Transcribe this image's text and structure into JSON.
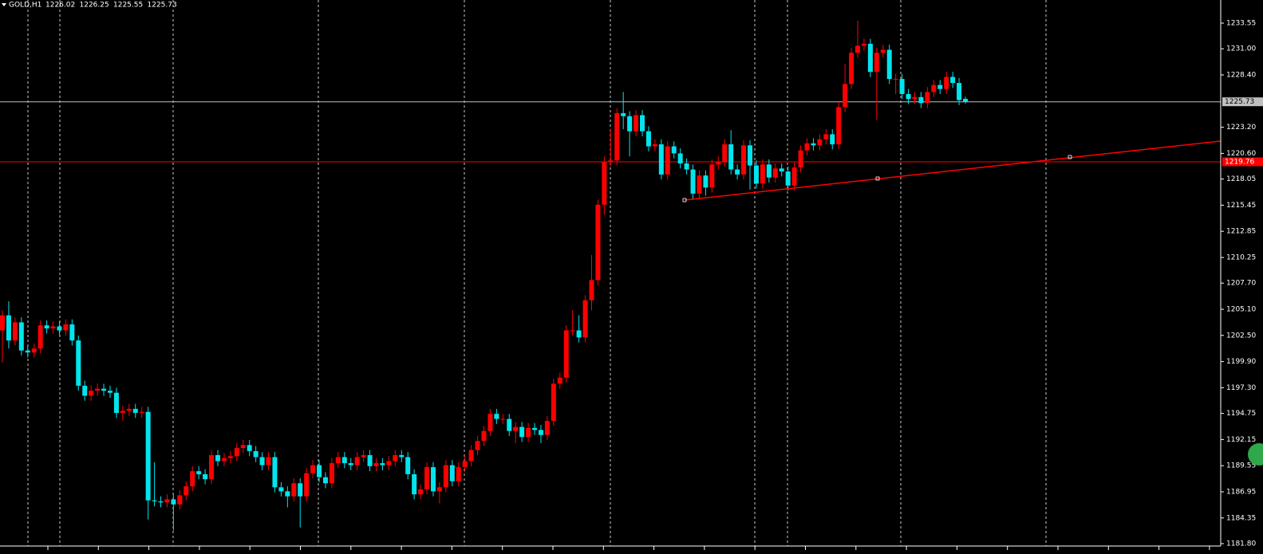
{
  "chart_data": {
    "type": "candlestick",
    "title": "GOLD,H1",
    "up_color": "#ff0000",
    "down_color": "#00e5ee",
    "ylim": [
      1181.56,
      1235.85
    ],
    "yticks": [
      1233.55,
      {
        "value": 1231,
        "label": "1231.00"
      },
      {
        "value": 1228.4,
        "label": "1228.40"
      },
      {
        "value": 1223.2,
        "label": "1223.20"
      },
      {
        "value": 1220.6,
        "label": "1220.60"
      },
      1218.05,
      1215.45,
      1212.85,
      1210.25,
      {
        "value": 1207.7,
        "label": "1207.70"
      },
      {
        "value": 1205.1,
        "label": "1205.10"
      },
      {
        "value": 1202.5,
        "label": "1202.50"
      },
      {
        "value": 1199.9,
        "label": "1199.90"
      },
      {
        "value": 1197.3,
        "label": "1197.30"
      },
      1194.75,
      1192.15,
      1189.55,
      1186.95,
      1184.35,
      {
        "value": 1181.8,
        "label": "1181.80"
      }
    ],
    "price_lines": [
      {
        "value": 1225.73,
        "color": "#c0c0c0"
      },
      {
        "value": 1219.76,
        "color": "#ff0000"
      }
    ],
    "open": [
      1203.0,
      1204.5,
      1202.0,
      1203.8,
      1201.0,
      1200.8,
      1201.2,
      1203.5,
      1203.2,
      1203.4,
      1203.0,
      1203.6,
      1202.0,
      1197.5,
      1196.5,
      1197.0,
      1197.2,
      1197.0,
      1196.8,
      1194.8,
      1195.0,
      1195.2,
      1194.8,
      1194.9,
      1186.1,
      1186.0,
      1185.9,
      1186.2,
      1185.7,
      1186.6,
      1187.5,
      1189.0,
      1188.7,
      1188.2,
      1190.6,
      1190.0,
      1190.3,
      1190.5,
      1191.3,
      1191.6,
      1191.0,
      1190.4,
      1189.6,
      1190.4,
      1187.4,
      1187.0,
      1186.5,
      1187.8,
      1186.5,
      1188.8,
      1189.6,
      1188.4,
      1187.8,
      1189.8,
      1190.4,
      1189.8,
      1189.6,
      1190.4,
      1190.6,
      1189.5,
      1189.8,
      1189.6,
      1190.0,
      1190.6,
      1190.4,
      1188.7,
      1186.7,
      1187.2,
      1189.4,
      1187.0,
      1187.4,
      1189.6,
      1188.0,
      1189.4,
      1190.0,
      1191.1,
      1192.0,
      1193.0,
      1194.7,
      1194.2,
      1194.2,
      1193.0,
      1193.4,
      1192.4,
      1193.3,
      1193.1,
      1192.6,
      1194.0,
      1197.7,
      1198.3,
      1203.0,
      1203.0,
      1202.3,
      1206.0,
      1208.0,
      1215.5,
      1219.8,
      1219.9,
      1224.6,
      1224.3,
      1222.8,
      1224.4,
      1222.8,
      1221.3,
      1221.5,
      1218.5,
      1221.3,
      1220.6,
      1219.6,
      1219.0,
      1216.6,
      1218.4,
      1217.2,
      1219.5,
      1219.8,
      1221.5,
      1219.0,
      1218.5,
      1221.4,
      1219.4,
      1217.6,
      1219.5,
      1218.2,
      1219.1,
      1218.8,
      1217.4,
      1219.2,
      1220.9,
      1221.6,
      1221.4,
      1222.0,
      1222.5,
      1221.5,
      1225.2,
      1227.5,
      1230.6,
      1231.3,
      1231.5,
      1228.7,
      1230.6,
      1230.9,
      1228.0,
      1228.0,
      1226.5,
      1226.0,
      1226.2,
      1225.6,
      1226.7,
      1227.4,
      1227.0,
      1228.2,
      1227.6,
      1226.02
    ],
    "high": [
      1205.0,
      1205.9,
      1204.3,
      1204.3,
      1201.5,
      1201.7,
      1204.0,
      1204.0,
      1203.9,
      1203.9,
      1204.1,
      1204.1,
      1202.5,
      1198.0,
      1197.5,
      1197.7,
      1197.7,
      1197.5,
      1197.3,
      1195.5,
      1195.7,
      1195.7,
      1195.4,
      1195.4,
      1189.9,
      1186.5,
      1186.7,
      1186.7,
      1187.1,
      1188.0,
      1189.5,
      1189.5,
      1189.2,
      1191.1,
      1191.1,
      1190.8,
      1191.0,
      1191.8,
      1192.1,
      1192.1,
      1191.5,
      1190.9,
      1190.9,
      1190.9,
      1187.9,
      1187.5,
      1188.3,
      1188.3,
      1189.3,
      1190.1,
      1190.1,
      1188.9,
      1190.3,
      1190.9,
      1190.9,
      1190.3,
      1190.9,
      1191.1,
      1191.1,
      1190.3,
      1190.3,
      1190.5,
      1191.1,
      1191.1,
      1190.9,
      1189.2,
      1187.7,
      1189.9,
      1189.9,
      1187.9,
      1190.1,
      1190.1,
      1189.9,
      1190.5,
      1191.6,
      1192.5,
      1193.5,
      1195.2,
      1195.2,
      1194.7,
      1194.7,
      1193.9,
      1193.9,
      1193.8,
      1193.8,
      1193.6,
      1194.5,
      1198.2,
      1198.8,
      1203.5,
      1205.0,
      1204.5,
      1206.5,
      1210.5,
      1216.0,
      1220.3,
      1223.0,
      1225.1,
      1226.7,
      1224.8,
      1224.9,
      1224.9,
      1223.3,
      1222.0,
      1222.0,
      1221.8,
      1221.8,
      1221.1,
      1220.1,
      1219.5,
      1218.9,
      1218.9,
      1220.0,
      1220.3,
      1222.0,
      1222.9,
      1219.5,
      1221.9,
      1221.9,
      1219.9,
      1220.0,
      1220.0,
      1219.6,
      1219.6,
      1219.3,
      1219.7,
      1221.4,
      1222.1,
      1222.1,
      1222.5,
      1223.0,
      1223.0,
      1225.7,
      1229.5,
      1231.1,
      1233.8,
      1232.0,
      1232.0,
      1231.1,
      1231.4,
      1231.4,
      1228.5,
      1228.5,
      1227.0,
      1226.7,
      1226.7,
      1227.2,
      1227.9,
      1227.9,
      1228.7,
      1228.7,
      1228.1,
      1226.25
    ],
    "low": [
      1199.8,
      1201.2,
      1201.5,
      1200.5,
      1200.3,
      1200.3,
      1200.7,
      1202.7,
      1202.7,
      1202.5,
      1202.5,
      1201.5,
      1197.0,
      1196.0,
      1196.0,
      1196.5,
      1196.5,
      1196.3,
      1194.3,
      1194.0,
      1194.5,
      1194.3,
      1194.3,
      1184.2,
      1185.5,
      1185.4,
      1185.4,
      1183.1,
      1185.2,
      1186.1,
      1187.0,
      1188.2,
      1187.7,
      1187.7,
      1189.5,
      1189.5,
      1189.8,
      1190.0,
      1190.8,
      1190.5,
      1189.9,
      1189.1,
      1189.1,
      1186.9,
      1186.5,
      1185.4,
      1186.0,
      1183.4,
      1186.0,
      1188.3,
      1187.9,
      1187.3,
      1187.3,
      1189.3,
      1189.3,
      1189.1,
      1189.1,
      1189.9,
      1189.0,
      1189.0,
      1189.1,
      1189.1,
      1189.5,
      1189.9,
      1188.2,
      1186.2,
      1186.2,
      1186.7,
      1186.5,
      1185.8,
      1186.9,
      1187.5,
      1187.5,
      1188.9,
      1189.5,
      1190.6,
      1191.5,
      1192.5,
      1193.7,
      1193.7,
      1192.5,
      1191.8,
      1191.9,
      1191.9,
      1192.6,
      1191.8,
      1192.1,
      1193.5,
      1197.2,
      1197.8,
      1202.5,
      1201.8,
      1201.8,
      1205.0,
      1207.5,
      1214.5,
      1219.3,
      1219.4,
      1223.0,
      1220.3,
      1222.3,
      1222.3,
      1220.8,
      1220.8,
      1218.0,
      1218.0,
      1220.1,
      1219.1,
      1218.5,
      1216.1,
      1216.1,
      1216.4,
      1216.7,
      1219.0,
      1219.3,
      1218.5,
      1218.0,
      1218.0,
      1217.0,
      1217.1,
      1217.1,
      1217.7,
      1217.7,
      1218.3,
      1216.9,
      1216.9,
      1218.7,
      1220.4,
      1220.9,
      1220.9,
      1221.5,
      1221.0,
      1221.0,
      1224.7,
      1227.0,
      1230.1,
      1230.8,
      1228.2,
      1223.9,
      1230.1,
      1227.5,
      1226.5,
      1226.0,
      1225.5,
      1225.5,
      1225.1,
      1225.1,
      1226.2,
      1226.5,
      1226.5,
      1227.1,
      1225.4,
      1225.55
    ],
    "close": [
      1204.5,
      1202.0,
      1203.8,
      1201.0,
      1200.8,
      1201.2,
      1203.5,
      1203.2,
      1203.4,
      1203.0,
      1203.6,
      1202.0,
      1197.5,
      1196.5,
      1197.0,
      1197.2,
      1197.0,
      1196.8,
      1194.8,
      1195.0,
      1195.2,
      1194.8,
      1194.9,
      1186.1,
      1186.0,
      1185.9,
      1186.2,
      1185.7,
      1186.6,
      1187.5,
      1189.0,
      1188.7,
      1188.2,
      1190.6,
      1190.0,
      1190.3,
      1190.5,
      1191.3,
      1191.6,
      1191.0,
      1190.4,
      1189.6,
      1190.4,
      1187.4,
      1187.0,
      1186.5,
      1187.8,
      1186.5,
      1188.8,
      1189.6,
      1188.4,
      1187.8,
      1189.8,
      1190.4,
      1189.8,
      1189.6,
      1190.4,
      1190.6,
      1189.5,
      1189.8,
      1189.6,
      1190.0,
      1190.6,
      1190.4,
      1188.7,
      1186.7,
      1187.2,
      1189.4,
      1187.0,
      1187.4,
      1189.6,
      1188.0,
      1189.4,
      1190.0,
      1191.1,
      1192.0,
      1193.0,
      1194.7,
      1194.2,
      1194.2,
      1193.0,
      1193.4,
      1192.4,
      1193.3,
      1193.1,
      1192.6,
      1194.0,
      1197.7,
      1198.3,
      1203.0,
      1203.0,
      1202.3,
      1206.0,
      1208.0,
      1215.5,
      1219.8,
      1219.9,
      1224.6,
      1224.3,
      1222.8,
      1224.4,
      1222.8,
      1221.3,
      1221.5,
      1218.5,
      1221.3,
      1220.6,
      1219.6,
      1219.0,
      1216.6,
      1218.4,
      1217.2,
      1219.5,
      1219.8,
      1221.5,
      1219.0,
      1218.5,
      1221.4,
      1219.4,
      1217.6,
      1219.5,
      1218.2,
      1219.1,
      1218.8,
      1217.4,
      1219.2,
      1220.9,
      1221.6,
      1221.4,
      1222.0,
      1222.5,
      1221.5,
      1225.2,
      1227.5,
      1230.6,
      1231.3,
      1231.5,
      1228.7,
      1230.6,
      1230.9,
      1228.0,
      1228.0,
      1226.5,
      1226.0,
      1226.2,
      1225.6,
      1226.7,
      1227.4,
      1227.0,
      1228.2,
      1227.6,
      1225.9,
      1225.73
    ]
  }
}
